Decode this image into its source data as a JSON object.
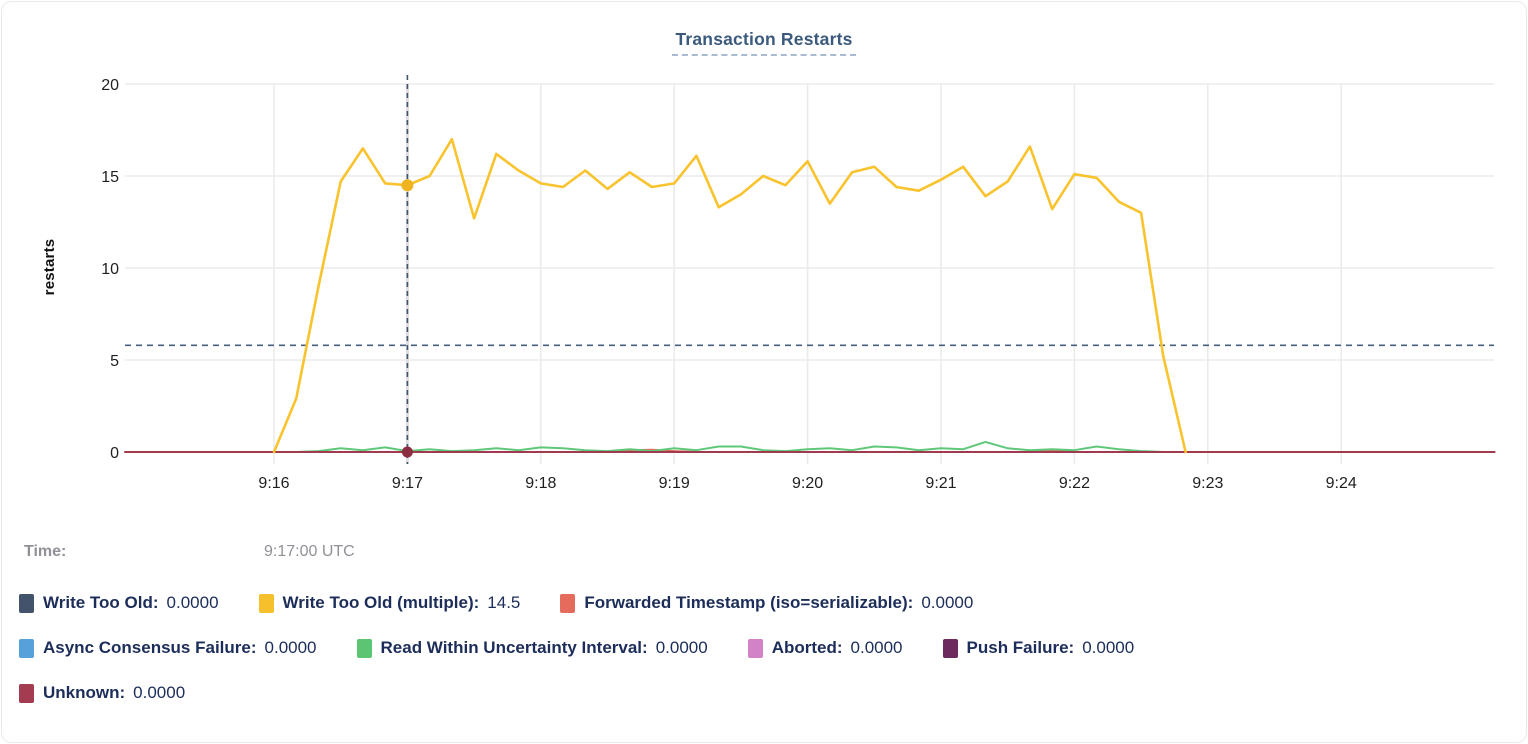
{
  "card": {
    "title": "Transaction Restarts"
  },
  "tooltip": {
    "time_label": "Time:",
    "time_value": "9:17:00 UTC",
    "legend_rows": [
      [
        {
          "label": "Write Too Old:",
          "value": "0.0000",
          "color": "#43536b"
        },
        {
          "label": "Write Too Old (multiple):",
          "value": "14.5",
          "color": "#f5c02c"
        },
        {
          "label": "Forwarded Timestamp (iso=serializable):",
          "value": "0.0000",
          "color": "#e56b5d"
        }
      ],
      [
        {
          "label": "Async Consensus Failure:",
          "value": "0.0000",
          "color": "#57a1da"
        },
        {
          "label": "Read Within Uncertainty Interval:",
          "value": "0.0000",
          "color": "#5cc573"
        },
        {
          "label": "Aborted:",
          "value": "0.0000",
          "color": "#d283c8"
        },
        {
          "label": "Push Failure:",
          "value": "0.0000",
          "color": "#6d2a5d"
        }
      ],
      [
        {
          "label": "Unknown:",
          "value": "0.0000",
          "color": "#a43c51"
        }
      ]
    ]
  },
  "chart_data": {
    "type": "line",
    "title": "Transaction Restarts",
    "xlabel": "",
    "ylabel": "restarts",
    "ylim": [
      0,
      20
    ],
    "y_ticks": [
      0,
      5,
      10,
      15,
      20
    ],
    "x_ticks": [
      "9:16",
      "9:17",
      "9:18",
      "9:19",
      "9:20",
      "9:21",
      "9:22",
      "9:23",
      "9:24"
    ],
    "x_tick_interval_seconds": 60,
    "grid": true,
    "legend_position": "bottom",
    "hover": {
      "time": "9:17:00 UTC",
      "highlight_series": "Write Too Old (multiple)",
      "highlight_value": 14.5,
      "unknown_dot_value": 0,
      "hline_value": 5.8
    },
    "series": [
      {
        "name": "Write Too Old",
        "color": "#43536b",
        "points": [
          [
            0,
            0
          ],
          [
            410,
            0
          ]
        ]
      },
      {
        "name": "Async Consensus Failure",
        "color": "#57a1da",
        "points": [
          [
            0,
            0
          ],
          [
            410,
            0
          ]
        ]
      },
      {
        "name": "Aborted",
        "color": "#d283c8",
        "points": [
          [
            0,
            0
          ],
          [
            410,
            0
          ]
        ]
      },
      {
        "name": "Push Failure",
        "color": "#6d2a5d",
        "points": [
          [
            0,
            0
          ],
          [
            410,
            0
          ]
        ]
      },
      {
        "name": "Forwarded Timestamp (iso=serializable)",
        "color": "#e56b5d",
        "points": [
          [
            0,
            0
          ],
          [
            150,
            0
          ],
          [
            160,
            0.1
          ],
          [
            170,
            0.12
          ],
          [
            180,
            0.05
          ],
          [
            190,
            0
          ],
          [
            340,
            0
          ],
          [
            350,
            0.08
          ],
          [
            360,
            0
          ],
          [
            410,
            0
          ]
        ]
      },
      {
        "name": "Read Within Uncertainty Interval",
        "color": "#5fc878",
        "points": [
          [
            0,
            0
          ],
          [
            10,
            0
          ],
          [
            20,
            0.05
          ],
          [
            30,
            0.2
          ],
          [
            40,
            0.1
          ],
          [
            50,
            0.25
          ],
          [
            60,
            0.05
          ],
          [
            70,
            0.15
          ],
          [
            80,
            0.05
          ],
          [
            90,
            0.1
          ],
          [
            100,
            0.2
          ],
          [
            110,
            0.1
          ],
          [
            120,
            0.25
          ],
          [
            130,
            0.2
          ],
          [
            140,
            0.1
          ],
          [
            150,
            0.05
          ],
          [
            160,
            0.15
          ],
          [
            170,
            0.05
          ],
          [
            180,
            0.2
          ],
          [
            190,
            0.1
          ],
          [
            200,
            0.3
          ],
          [
            210,
            0.3
          ],
          [
            220,
            0.1
          ],
          [
            230,
            0.05
          ],
          [
            240,
            0.15
          ],
          [
            250,
            0.2
          ],
          [
            260,
            0.1
          ],
          [
            270,
            0.3
          ],
          [
            280,
            0.25
          ],
          [
            290,
            0.1
          ],
          [
            300,
            0.2
          ],
          [
            310,
            0.15
          ],
          [
            320,
            0.55
          ],
          [
            330,
            0.2
          ],
          [
            340,
            0.1
          ],
          [
            350,
            0.15
          ],
          [
            360,
            0.1
          ],
          [
            370,
            0.3
          ],
          [
            380,
            0.15
          ],
          [
            390,
            0.05
          ],
          [
            400,
            0
          ],
          [
            410,
            0
          ]
        ]
      },
      {
        "name": "Unknown",
        "color": "#a03a4e",
        "points": [
          [
            -67,
            0
          ],
          [
            549,
            0
          ]
        ]
      },
      {
        "name": "Write Too Old (multiple)",
        "color": "#f9c32d",
        "points": [
          [
            0,
            0
          ],
          [
            10,
            2.9
          ],
          [
            20,
            9.0
          ],
          [
            30,
            14.7
          ],
          [
            40,
            16.5
          ],
          [
            50,
            14.6
          ],
          [
            60,
            14.5
          ],
          [
            70,
            15.0
          ],
          [
            80,
            17.0
          ],
          [
            90,
            12.7
          ],
          [
            100,
            16.2
          ],
          [
            110,
            15.3
          ],
          [
            120,
            14.6
          ],
          [
            130,
            14.4
          ],
          [
            140,
            15.3
          ],
          [
            150,
            14.3
          ],
          [
            160,
            15.2
          ],
          [
            170,
            14.4
          ],
          [
            180,
            14.6
          ],
          [
            190,
            16.1
          ],
          [
            200,
            13.3
          ],
          [
            210,
            14.0
          ],
          [
            220,
            15.0
          ],
          [
            230,
            14.5
          ],
          [
            240,
            15.8
          ],
          [
            250,
            13.5
          ],
          [
            260,
            15.2
          ],
          [
            270,
            15.5
          ],
          [
            280,
            14.4
          ],
          [
            290,
            14.2
          ],
          [
            300,
            14.8
          ],
          [
            310,
            15.5
          ],
          [
            320,
            13.9
          ],
          [
            330,
            14.7
          ],
          [
            340,
            16.6
          ],
          [
            350,
            13.2
          ],
          [
            360,
            15.1
          ],
          [
            370,
            14.9
          ],
          [
            380,
            13.6
          ],
          [
            390,
            13.0
          ],
          [
            400,
            5.2
          ],
          [
            410,
            0
          ]
        ]
      }
    ]
  }
}
